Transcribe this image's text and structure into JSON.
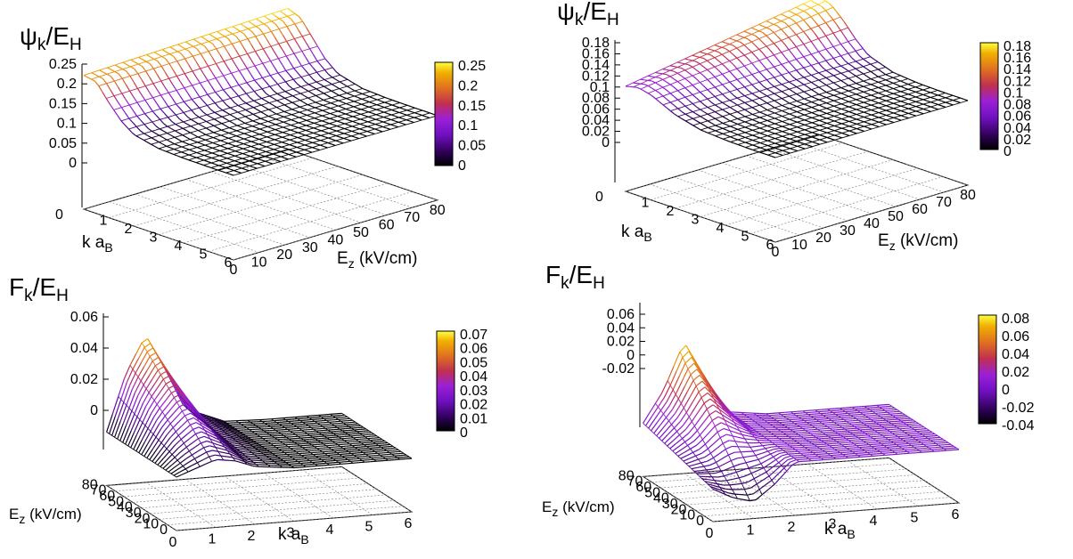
{
  "chart_data": [
    {
      "type": "surface3d",
      "panel": "top-left",
      "zlabel": "ψk/EH",
      "xlabel": "k aB",
      "ylabel": "Ez (kV/cm)",
      "z_ticks": [
        "0.25",
        "0.2",
        "0.15",
        "0.1",
        "0.05",
        "0"
      ],
      "x_ticks": [
        "1",
        "2",
        "3",
        "4",
        "5",
        "6"
      ],
      "y_ticks": [
        "0",
        "10",
        "20",
        "30",
        "40",
        "50",
        "60",
        "70",
        "80"
      ],
      "floor_left_tick": "0",
      "colorbar_ticks": [
        "0.25",
        "0.2",
        "0.15",
        "0.1",
        "0.05",
        "0"
      ],
      "xlim": [
        0,
        6
      ],
      "ylim": [
        0,
        80
      ],
      "zlim": [
        0,
        0.25
      ],
      "colorbar_range": [
        0,
        0.25
      ],
      "grid": true,
      "colorbar_placement": "right",
      "colormap": [
        "#000000",
        "#4a0080",
        "#8c20e0",
        "#c03040",
        "#e07020",
        "#f0b000",
        "#ffff50"
      ],
      "surface_profile": {
        "description_values_k": [
          0,
          0.5,
          1,
          1.5,
          2,
          3,
          4,
          5,
          6
        ],
        "psi_at_Ez_0": [
          0.21,
          0.2,
          0.13,
          0.07,
          0.03,
          0.006,
          0.001,
          0.0,
          0.0
        ],
        "psi_at_Ez_80": [
          0.24,
          0.22,
          0.15,
          0.08,
          0.035,
          0.007,
          0.001,
          0.0,
          0.0
        ]
      }
    },
    {
      "type": "surface3d",
      "panel": "top-right",
      "zlabel": "ψk/EH",
      "xlabel": "k aB",
      "ylabel": "Ez (kV/cm)",
      "z_ticks": [
        "0.18",
        "0.16",
        "0.14",
        "0.12",
        "0.1",
        "0.08",
        "0.06",
        "0.04",
        "0.02",
        "0"
      ],
      "x_ticks": [
        "1",
        "2",
        "3",
        "4",
        "5",
        "6"
      ],
      "y_ticks": [
        "0",
        "10",
        "20",
        "30",
        "40",
        "50",
        "60",
        "70",
        "80"
      ],
      "floor_left_tick": "0",
      "colorbar_ticks": [
        "0.18",
        "0.16",
        "0.14",
        "0.12",
        "0.1",
        "0.08",
        "0.06",
        "0.04",
        "0.02",
        "0"
      ],
      "xlim": [
        0,
        6
      ],
      "ylim": [
        0,
        80
      ],
      "zlim": [
        0,
        0.18
      ],
      "colorbar_range": [
        0,
        0.18
      ],
      "grid": true,
      "colorbar_placement": "right",
      "colormap": [
        "#000000",
        "#4a0080",
        "#8c20e0",
        "#c03040",
        "#e07020",
        "#f0b000",
        "#ffff50"
      ],
      "surface_profile": {
        "description_values_k": [
          0,
          0.5,
          1,
          1.5,
          2,
          3,
          4,
          5,
          6
        ],
        "psi_at_Ez_0": [
          0.07,
          0.08,
          0.07,
          0.05,
          0.03,
          0.008,
          0.002,
          0.0,
          0.0
        ],
        "psi_at_Ez_80": [
          0.18,
          0.17,
          0.13,
          0.08,
          0.04,
          0.01,
          0.002,
          0.0,
          0.0
        ]
      }
    },
    {
      "type": "surface3d",
      "panel": "bottom-left",
      "zlabel": "Fk/EH",
      "xlabel": "k aB",
      "ylabel": "Ez (kV/cm)",
      "z_ticks": [
        "0.06",
        "0.04",
        "0.02",
        "0"
      ],
      "x_ticks": [
        "0",
        "1",
        "2",
        "3",
        "4",
        "5",
        "6"
      ],
      "y_ticks": [
        "0",
        "10",
        "20",
        "30",
        "40",
        "50",
        "60",
        "70",
        "80"
      ],
      "colorbar_ticks": [
        "0.07",
        "0.06",
        "0.05",
        "0.04",
        "0.03",
        "0.02",
        "0.01",
        "0"
      ],
      "xlim": [
        0,
        6
      ],
      "ylim": [
        0,
        80
      ],
      "zlim": [
        0,
        0.07
      ],
      "colorbar_range": [
        0,
        0.07
      ],
      "grid": true,
      "colorbar_placement": "right",
      "colormap": [
        "#000000",
        "#4a0080",
        "#8c20e0",
        "#c03040",
        "#e07020",
        "#f0b000",
        "#ffff50"
      ],
      "surface_profile": {
        "description_values_k": [
          0,
          0.5,
          1,
          1.5,
          2,
          3,
          4,
          5,
          6
        ],
        "F_at_Ez_0": [
          0.0,
          0.005,
          0.01,
          0.008,
          0.003,
          0.0,
          0.0,
          0.0,
          0.0
        ],
        "F_at_Ez_80": [
          0.0,
          0.04,
          0.065,
          0.04,
          0.012,
          0.001,
          0.0,
          0.0,
          0.0
        ]
      }
    },
    {
      "type": "surface3d",
      "panel": "bottom-right",
      "zlabel": "Fk/EH",
      "xlabel": "k aB",
      "ylabel": "Ez (kV/cm)",
      "z_ticks": [
        "0.06",
        "0.04",
        "0.02",
        "0",
        "-0.02"
      ],
      "x_ticks": [
        "0",
        "1",
        "2",
        "3",
        "4",
        "5",
        "6"
      ],
      "y_ticks": [
        "0",
        "10",
        "20",
        "30",
        "40",
        "50",
        "60",
        "70",
        "80"
      ],
      "colorbar_ticks": [
        "0.08",
        "0.06",
        "0.04",
        "0.02",
        "0",
        "-0.02",
        "-0.04"
      ],
      "xlim": [
        0,
        6
      ],
      "ylim": [
        0,
        80
      ],
      "zlim": [
        -0.04,
        0.08
      ],
      "colorbar_range": [
        -0.04,
        0.08
      ],
      "grid": true,
      "colorbar_placement": "right",
      "colormap": [
        "#000000",
        "#4a0080",
        "#8c20e0",
        "#c03040",
        "#e07020",
        "#f0b000",
        "#ffff50"
      ],
      "surface_profile": {
        "description_values_k": [
          0,
          0.5,
          1,
          1.5,
          2,
          3,
          4,
          5,
          6
        ],
        "F_at_Ez_0": [
          -0.02,
          -0.03,
          -0.035,
          -0.02,
          0.0,
          0.0,
          0.0,
          0.0,
          0.0
        ],
        "F_at_Ez_80": [
          0.0,
          0.03,
          0.075,
          0.04,
          0.005,
          0.0,
          0.0,
          0.0,
          0.0
        ]
      }
    }
  ]
}
